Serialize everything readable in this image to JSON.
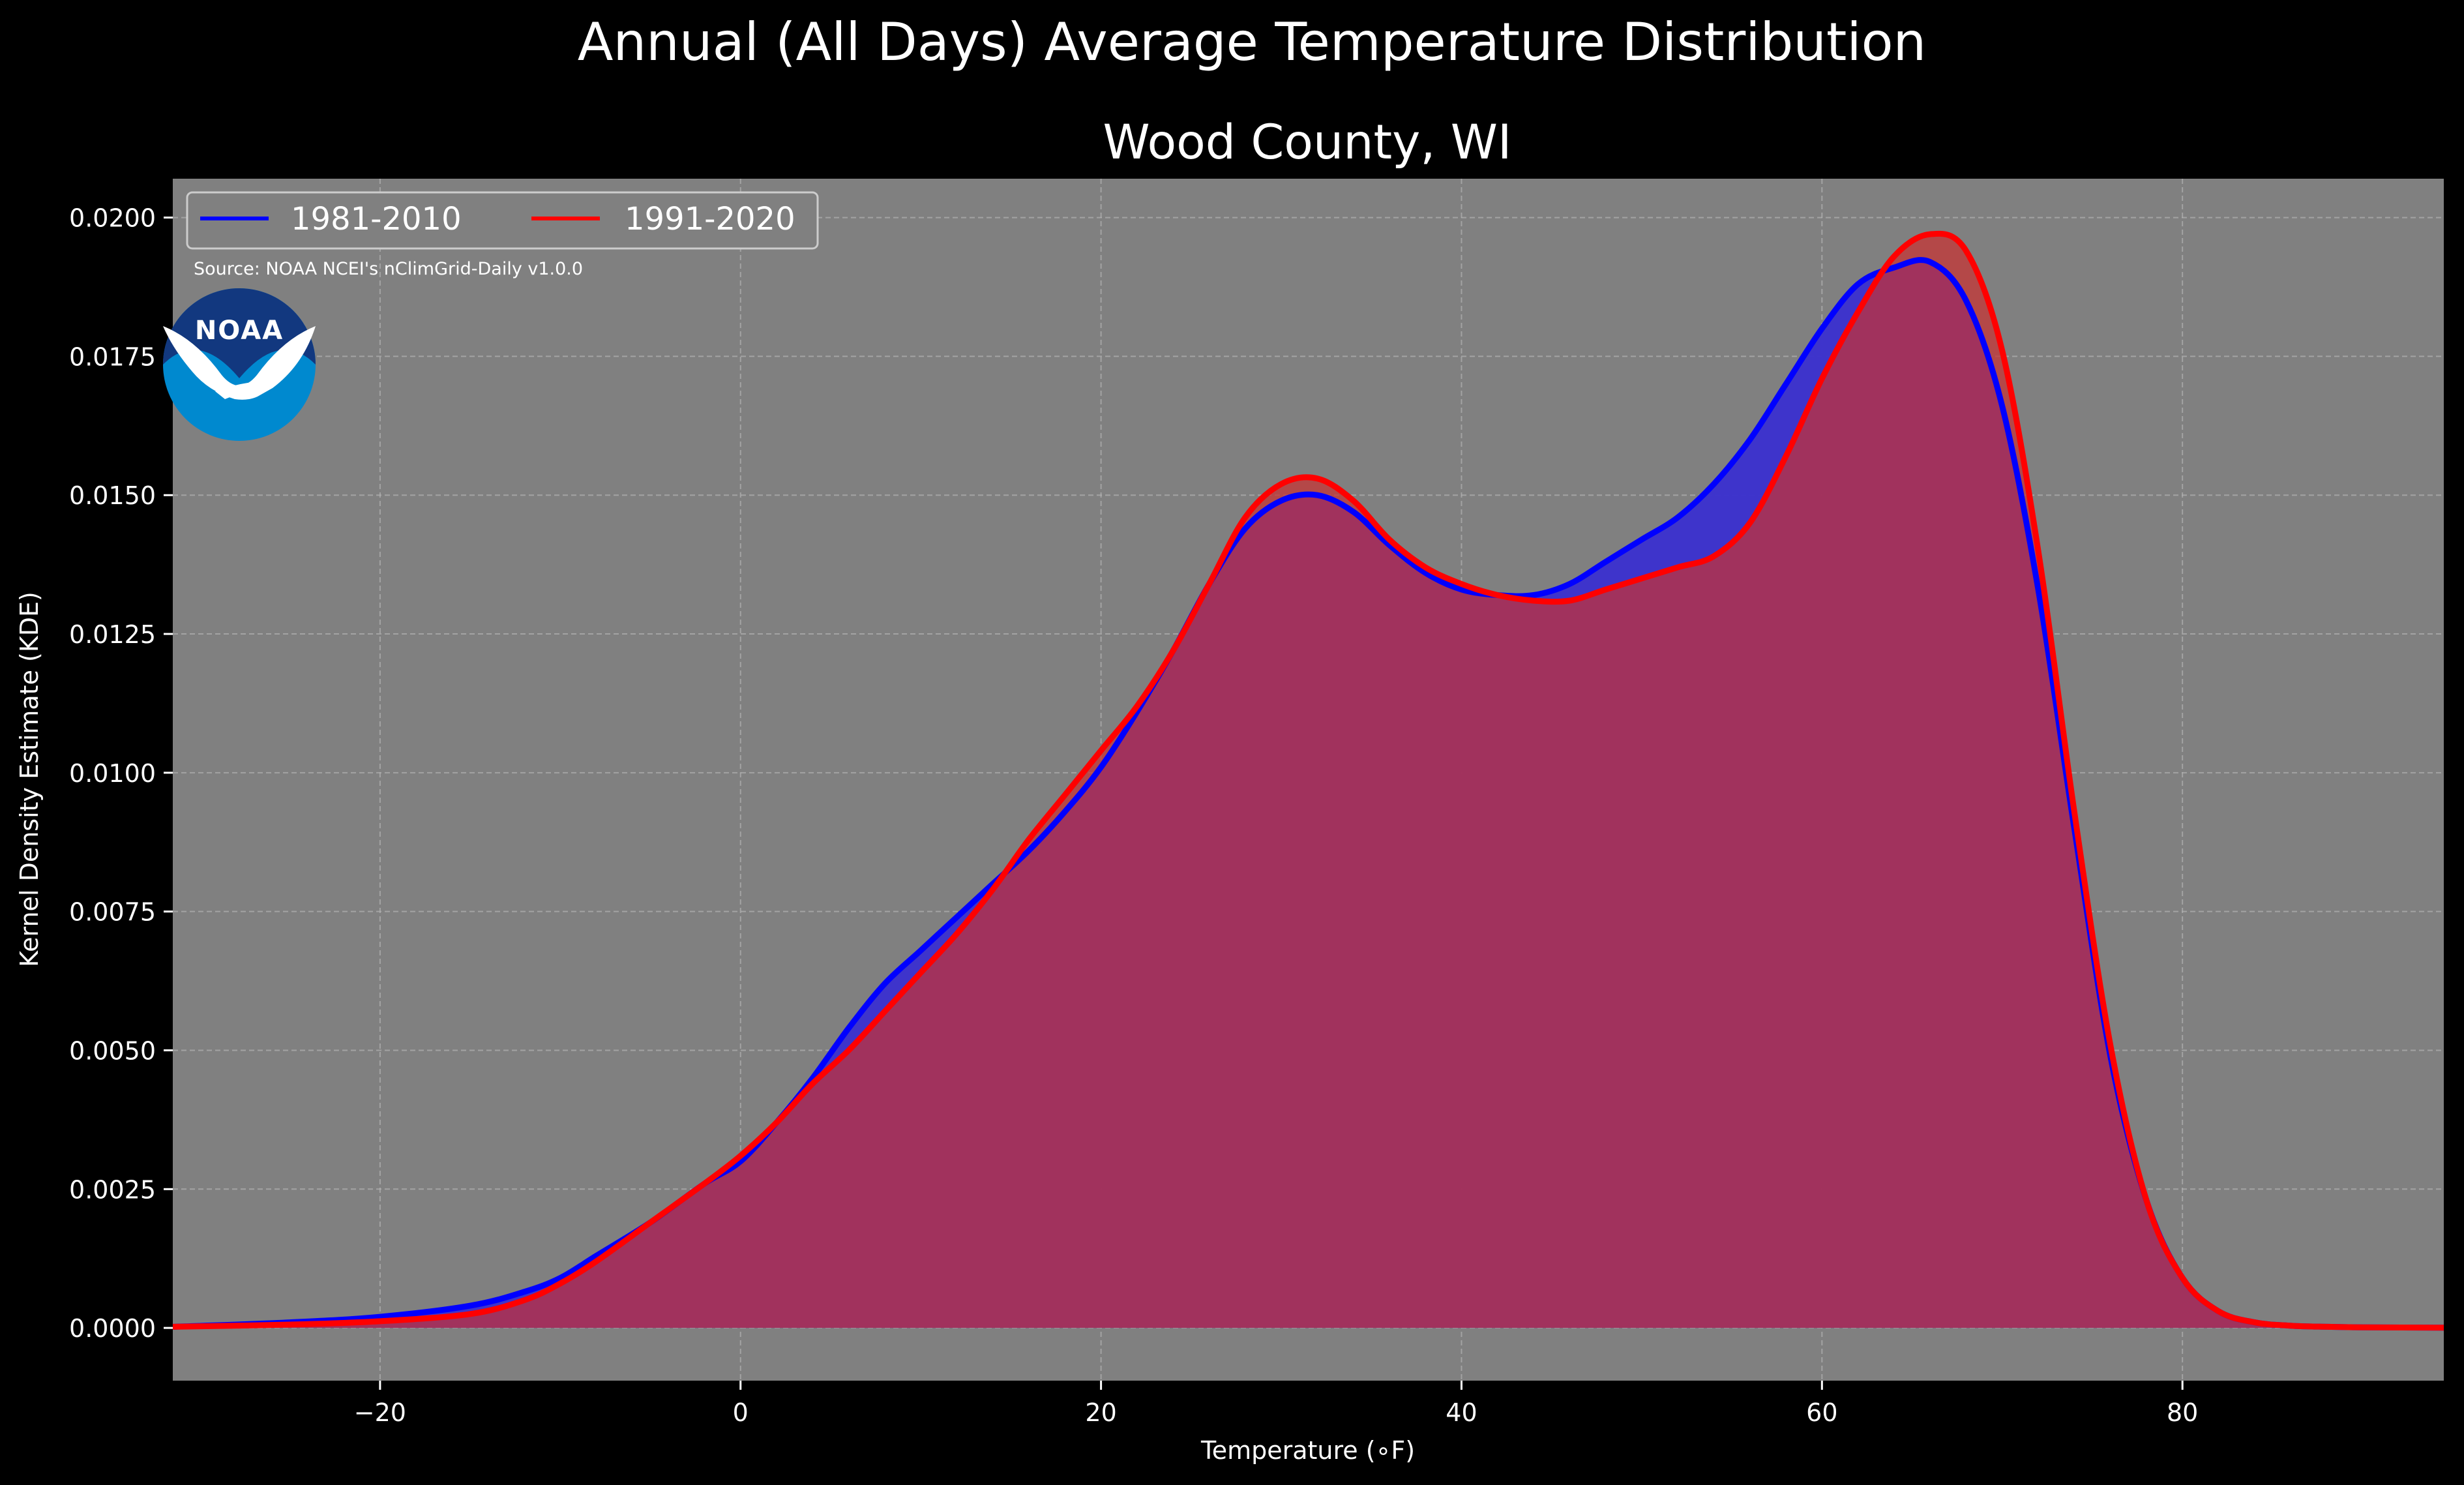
{
  "chart_data": {
    "type": "area",
    "suptitle": "Annual (All Days) Average Temperature Distribution",
    "title": "Wood County, WI",
    "xlabel": "Temperature (∘F)",
    "ylabel": "Kernel Density Estimate (KDE)",
    "xlim": [
      -31.5,
      94.5
    ],
    "ylim": [
      -0.00095,
      0.0207
    ],
    "x_ticks": [
      -20,
      0,
      20,
      40,
      60,
      80
    ],
    "x_tick_labels": [
      "−20",
      "0",
      "20",
      "40",
      "60",
      "80"
    ],
    "y_ticks": [
      0,
      0.0025,
      0.005,
      0.0075,
      0.01,
      0.0125,
      0.015,
      0.0175,
      0.02
    ],
    "y_tick_labels": [
      "0.0000",
      "0.0025",
      "0.0050",
      "0.0075",
      "0.0100",
      "0.0125",
      "0.0150",
      "0.0175",
      "0.0200"
    ],
    "grid": true,
    "legend_position": "top-left",
    "source_text": "Source: NOAA NCEI's nClimGrid-Daily v1.0.0",
    "logo_text": "NOAA",
    "background_color": "#000000",
    "plot_background_color": "#808080",
    "series": [
      {
        "name": "1981-2010",
        "color": "#0000ff",
        "fill_color": "#3a2fcf",
        "x": [
          -31.5,
          -25,
          -20,
          -15,
          -12,
          -10,
          -8,
          -5,
          -2,
          0,
          2,
          4,
          6,
          8,
          10,
          12,
          14,
          16,
          18,
          20,
          22,
          24,
          26,
          28,
          30,
          32,
          34,
          36,
          38,
          40,
          42,
          44,
          46,
          48,
          50,
          52,
          54,
          56,
          58,
          60,
          62,
          64,
          66,
          68,
          70,
          72,
          74,
          76,
          78,
          80,
          82,
          84,
          86,
          88,
          90,
          94.5
        ],
        "values": [
          2e-05,
          0.0001,
          0.0002,
          0.0004,
          0.00065,
          0.0009,
          0.0013,
          0.0019,
          0.0026,
          0.003,
          0.0037,
          0.0045,
          0.0054,
          0.0062,
          0.0068,
          0.0074,
          0.008,
          0.0086,
          0.0093,
          0.0101,
          0.0111,
          0.0122,
          0.0134,
          0.0144,
          0.0149,
          0.015,
          0.0147,
          0.0141,
          0.0136,
          0.0133,
          0.0132,
          0.0132,
          0.0134,
          0.0138,
          0.0142,
          0.0146,
          0.0152,
          0.016,
          0.017,
          0.018,
          0.0188,
          0.0191,
          0.0192,
          0.0185,
          0.0166,
          0.0133,
          0.009,
          0.0049,
          0.0023,
          0.0009,
          0.0003,
          0.0001,
          4e-05,
          2e-05,
          1e-05,
          5e-06
        ]
      },
      {
        "name": "1991-2020",
        "color": "#ff0000",
        "fill_color": "#c83232",
        "x": [
          -31.5,
          -25,
          -20,
          -15,
          -12,
          -10,
          -8,
          -5,
          -2,
          0,
          2,
          4,
          6,
          8,
          10,
          12,
          14,
          16,
          18,
          20,
          22,
          24,
          26,
          28,
          30,
          32,
          34,
          36,
          38,
          40,
          42,
          44,
          46,
          48,
          50,
          52,
          54,
          56,
          58,
          60,
          62,
          64,
          66,
          68,
          70,
          72,
          74,
          76,
          78,
          80,
          82,
          84,
          86,
          88,
          90,
          94.5
        ],
        "values": [
          2e-05,
          6e-05,
          0.00012,
          0.00025,
          0.0005,
          0.0008,
          0.0012,
          0.0019,
          0.0026,
          0.0031,
          0.0037,
          0.0044,
          0.005,
          0.0057,
          0.0064,
          0.0071,
          0.0079,
          0.0088,
          0.0096,
          0.0104,
          0.0112,
          0.0122,
          0.0134,
          0.0146,
          0.0152,
          0.0153,
          0.0149,
          0.0142,
          0.0137,
          0.0134,
          0.0132,
          0.0131,
          0.0131,
          0.0133,
          0.0135,
          0.0137,
          0.0139,
          0.0145,
          0.0157,
          0.0171,
          0.0183,
          0.0193,
          0.0197,
          0.0194,
          0.0176,
          0.014,
          0.0093,
          0.0051,
          0.0023,
          0.0009,
          0.0003,
          0.0001,
          4e-05,
          2e-05,
          1e-05,
          5e-06
        ]
      }
    ]
  }
}
